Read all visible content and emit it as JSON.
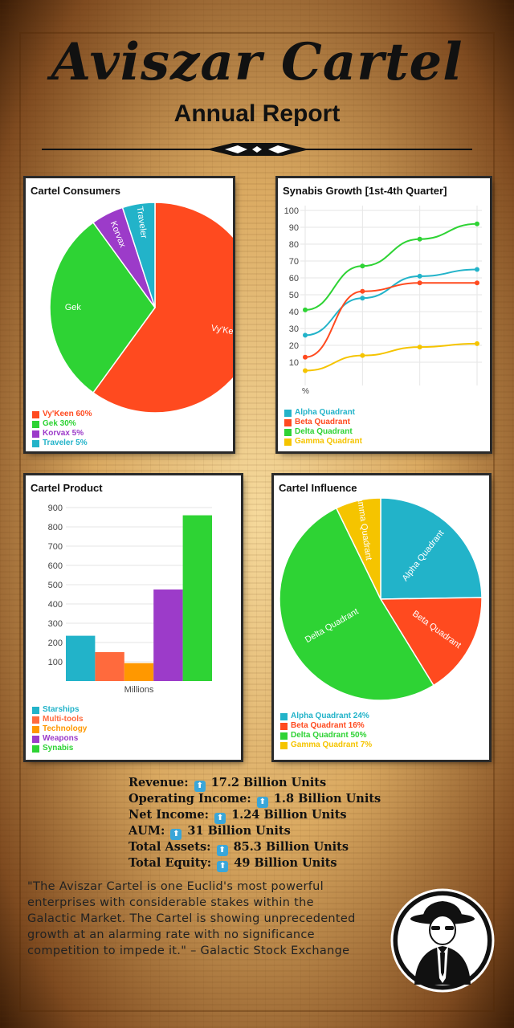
{
  "header": {
    "title": "Aviszar Cartel",
    "subtitle": "Annual Report"
  },
  "colors": {
    "red": "#ff4a1f",
    "green": "#2ed334",
    "purple": "#9c3bc9",
    "teal": "#22b3c9",
    "orange": "#ff9800",
    "yellow": "#f5c400",
    "lightred": "#ff6a3d"
  },
  "chart_data": [
    {
      "type": "pie",
      "title": "Cartel Consumers",
      "slices": [
        {
          "label": "Vy'Keen",
          "value": 60,
          "legend": "Vy'Keen 60%"
        },
        {
          "label": "Gek",
          "value": 30,
          "legend": "Gek 30%"
        },
        {
          "label": "Korvax",
          "value": 5,
          "legend": "Korvax 5%"
        },
        {
          "label": "Traveler",
          "value": 5,
          "legend": "Traveler 5%"
        }
      ]
    },
    {
      "type": "line",
      "title": "Synabis Growth [1st-4th Quarter]",
      "ylabel": "%",
      "ylim": [
        0,
        100
      ],
      "yticks": [
        10,
        20,
        30,
        40,
        50,
        60,
        70,
        80,
        90,
        100
      ],
      "x": [
        1,
        2,
        3,
        4
      ],
      "series": [
        {
          "name": "Alpha Quadrant",
          "values": [
            26,
            48,
            61,
            65
          ]
        },
        {
          "name": "Beta Quadrant",
          "values": [
            13,
            52,
            57,
            57
          ]
        },
        {
          "name": "Delta Quadrant",
          "values": [
            41,
            67,
            83,
            92
          ]
        },
        {
          "name": "Gamma Quadrant",
          "values": [
            5,
            14,
            19,
            21
          ]
        }
      ]
    },
    {
      "type": "bar",
      "title": "Cartel Product",
      "xlabel": "Millions",
      "ylim": [
        0,
        900
      ],
      "yticks": [
        100,
        200,
        300,
        400,
        500,
        600,
        700,
        800,
        900
      ],
      "series": [
        {
          "name": "Starships",
          "value": 235
        },
        {
          "name": "Multi-tools",
          "value": 150
        },
        {
          "name": "Technology",
          "value": 93
        },
        {
          "name": "Weapons",
          "value": 475
        },
        {
          "name": "Synabis",
          "value": 860
        }
      ]
    },
    {
      "type": "pie",
      "title": "Cartel Influence",
      "slices": [
        {
          "label": "Alpha Quadrant",
          "value": 24,
          "legend": "Alpha Quadrant 24%"
        },
        {
          "label": "Beta Quadrant",
          "value": 16,
          "legend": "Beta Quadrant 16%"
        },
        {
          "label": "Delta Quadrant",
          "value": 50,
          "legend": "Delta Quadrant 50%"
        },
        {
          "label": "Gamma Quadrant",
          "value": 7,
          "legend": "Gamma Quadrant 7%"
        }
      ]
    }
  ],
  "stats": [
    {
      "label": "Revenue:",
      "value": "17.2 Billion Units"
    },
    {
      "label": "Operating Income:",
      "value": "1.8 Billion Units"
    },
    {
      "label": "Net Income:",
      "value": "1.24 Billion Units"
    },
    {
      "label": "AUM:",
      "value": "31 Billion Units"
    },
    {
      "label": "Total Assets:",
      "value": "85.3 Billion Units"
    },
    {
      "label": "Total Equity:",
      "value": "49 Billion Units"
    }
  ],
  "quote": "\"The Aviszar Cartel is one Euclid's most powerful enterprises with considerable stakes within the Galactic Market. The Cartel is showing unprecedented growth at an alarming rate with no significance competition to impede it.\" – Galactic Stock Exchange",
  "arrow_glyph": "⬆"
}
